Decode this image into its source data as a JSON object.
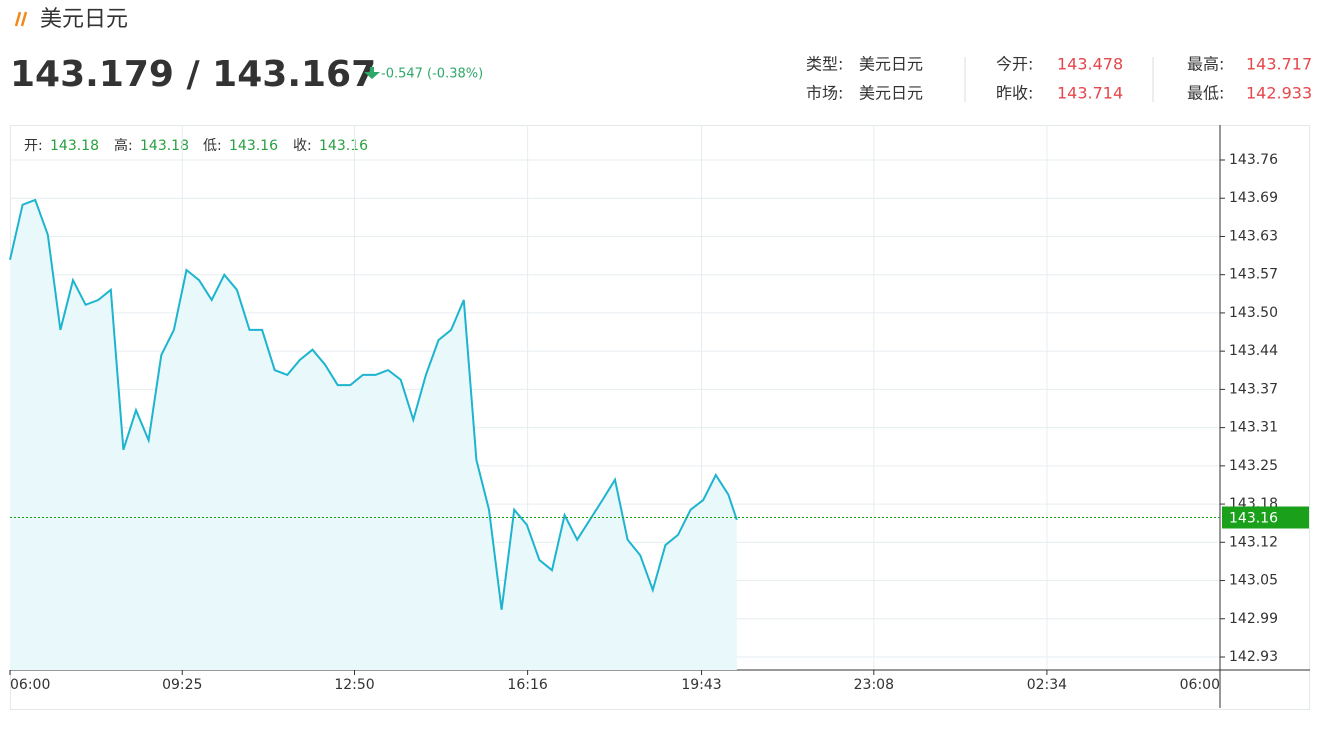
{
  "header": {
    "title": "美元日元",
    "price": "143.179 / 143.167",
    "change": "-0.547 (-0.38%)",
    "info": [
      [
        {
          "label": "类型:",
          "value": "美元日元"
        },
        {
          "label": "今开:",
          "value": "143.478"
        },
        {
          "label": "最高:",
          "value": "143.717"
        }
      ],
      [
        {
          "label": "市场:",
          "value": "美元日元"
        },
        {
          "label": "昨收:",
          "value": "143.714"
        },
        {
          "label": "最低:",
          "value": "142.933"
        }
      ]
    ]
  },
  "ohlc": [
    {
      "label": "开:",
      "value": "143.18"
    },
    {
      "label": "高:",
      "value": "143.18"
    },
    {
      "label": "低:",
      "value": "143.16"
    },
    {
      "label": "收:",
      "value": "143.16"
    }
  ],
  "chart_data": {
    "type": "line",
    "color": "#1db4cf",
    "fill": "#e9f8fa",
    "grid": true,
    "current": 143.16,
    "xlim": [
      0,
      1440
    ],
    "xticks": [
      {
        "value": 0,
        "label": "06:00"
      },
      {
        "value": 205,
        "label": "09:25"
      },
      {
        "value": 410,
        "label": "12:50"
      },
      {
        "value": 616,
        "label": "16:16"
      },
      {
        "value": 823,
        "label": "19:43"
      },
      {
        "value": 1028,
        "label": "23:08"
      },
      {
        "value": 1234,
        "label": "02:34"
      },
      {
        "value": 1440,
        "label": "06:00"
      }
    ],
    "ylim": [
      142.9055,
      143.815
    ],
    "yticks": [
      {
        "value": 142.9272,
        "label": "142.93"
      },
      {
        "value": 142.991,
        "label": "142.99"
      },
      {
        "value": 143.0548,
        "label": "143.05"
      },
      {
        "value": 143.1186,
        "label": "143.12"
      },
      {
        "value": 143.1824,
        "label": "143.18"
      },
      {
        "value": 143.2462,
        "label": "143.25"
      },
      143.31,
      {
        "value": 143.3738,
        "label": "143.37"
      },
      {
        "value": 143.4376,
        "label": "143.44"
      },
      {
        "value": 143.5014,
        "label": "143.50"
      },
      {
        "value": 143.5652,
        "label": "143.57"
      },
      {
        "value": 143.629,
        "label": "143.63"
      },
      {
        "value": 143.6928,
        "label": "143.69"
      },
      {
        "value": 143.7566,
        "label": "143.76"
      }
    ],
    "x": [
      0,
      15,
      30,
      45,
      60,
      75,
      90,
      105,
      120,
      135,
      150,
      165,
      180,
      195,
      210,
      225,
      240,
      255,
      270,
      285,
      300,
      315,
      330,
      345,
      360,
      375,
      390,
      405,
      420,
      435,
      450,
      465,
      480,
      495,
      510,
      525,
      540,
      555,
      570,
      585,
      600,
      615,
      630,
      645,
      660,
      675,
      690,
      705,
      720,
      735,
      750,
      765,
      780,
      795,
      810,
      825,
      840,
      855,
      865
    ],
    "values": [
      143.59,
      143.682,
      143.69,
      143.632,
      143.473,
      143.556,
      143.515,
      143.523,
      143.54,
      143.273,
      143.339,
      143.289,
      143.431,
      143.473,
      143.573,
      143.556,
      143.523,
      143.565,
      143.54,
      143.473,
      143.473,
      143.406,
      143.398,
      143.423,
      143.44,
      143.415,
      143.381,
      143.381,
      143.398,
      143.398,
      143.406,
      143.39,
      143.323,
      143.398,
      143.456,
      143.473,
      143.523,
      143.256,
      143.173,
      143.006,
      143.173,
      143.148,
      143.089,
      143.072,
      143.164,
      143.123,
      143.156,
      143.189,
      143.223,
      143.123,
      143.097,
      143.039,
      143.114,
      143.131,
      143.173,
      143.189,
      143.231,
      143.198,
      143.156
    ]
  }
}
